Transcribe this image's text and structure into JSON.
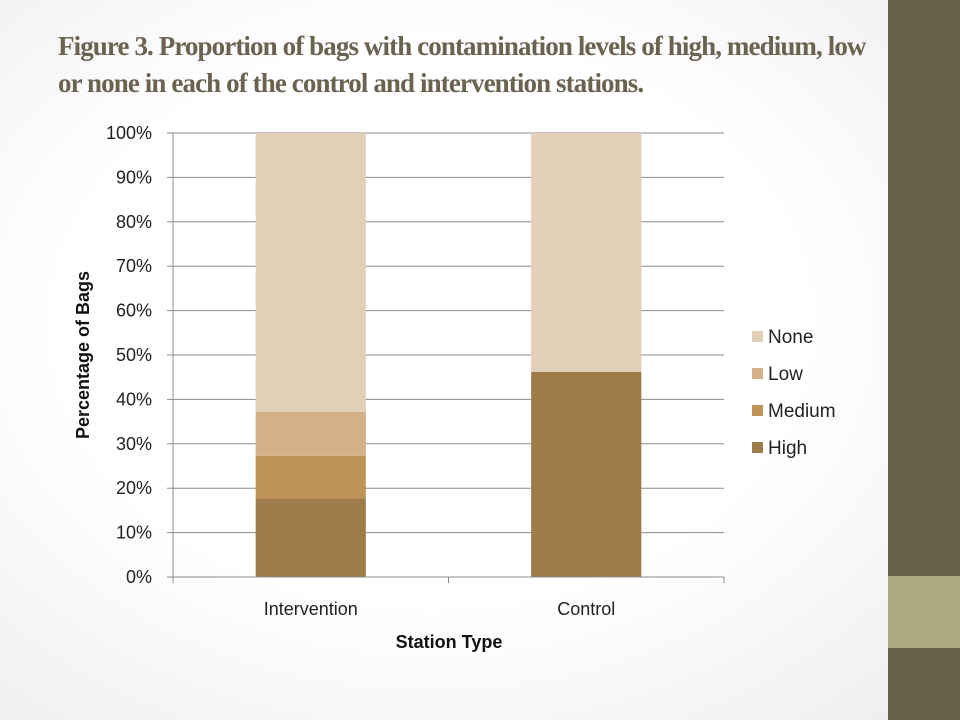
{
  "slide": {
    "title_label": "Figure 3.",
    "title_text": " Proportion of bags with contamination levels of high, medium, low or none in each of the control and intervention stations.",
    "accent_color": "#685f4a",
    "accent_highlight_color": "#ada87e"
  },
  "chart_data": {
    "type": "bar",
    "stacked": true,
    "categories": [
      "Intervention",
      "Control"
    ],
    "series": [
      {
        "name": "High",
        "values": [
          17.7,
          46.2
        ],
        "color": "#9e7c49"
      },
      {
        "name": "Medium",
        "values": [
          9.6,
          0
        ],
        "color": "#bd9456"
      },
      {
        "name": "Low",
        "values": [
          9.9,
          0
        ],
        "color": "#d4b088"
      },
      {
        "name": "None",
        "values": [
          62.8,
          53.8
        ],
        "color": "#e2cfb8"
      }
    ],
    "title": "",
    "xlabel": "Station Type",
    "ylabel": "Percentage of Bags",
    "ylim": [
      0,
      100
    ],
    "yticks": [
      "0%",
      "10%",
      "20%",
      "30%",
      "40%",
      "50%",
      "60%",
      "70%",
      "80%",
      "90%",
      "100%"
    ],
    "grid": true,
    "legend_position": "right",
    "legend_order": [
      "None",
      "Low",
      "Medium",
      "High"
    ]
  }
}
